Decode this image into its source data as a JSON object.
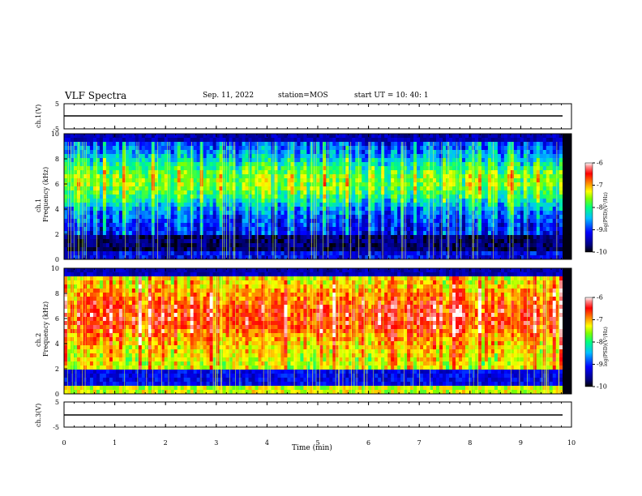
{
  "header": {
    "title": "VLF Spectra",
    "date": "Sep. 11, 2022",
    "station": "station=MOS",
    "start": "start  UT =  10: 40: 1"
  },
  "chart_data": [
    {
      "type": "line",
      "panel": "ch.1(V)",
      "ylabel": "ch.1(V)",
      "yticks": [
        "5",
        "-5"
      ],
      "ylim": [
        -5,
        5
      ],
      "x": [
        0,
        9.82
      ],
      "y": [
        0,
        0
      ]
    },
    {
      "type": "heatmap",
      "panel": "ch.1 spectrogram",
      "ylabel": "ch.1\nFrequency (kHz)",
      "ylabel_ch": "ch.1",
      "ylabel_freq": "Frequency (kHz)",
      "ylim": [
        0,
        10
      ],
      "yticks": [
        "0",
        "2",
        "4",
        "6",
        "8",
        "10"
      ],
      "xlim": [
        0,
        10
      ],
      "data_xmax": 9.82,
      "colorbar": {
        "label": "log(PSD)(V²/Hz)",
        "ticks": [
          "-6",
          "-7",
          "-8",
          "-9",
          "-10"
        ],
        "range": [
          -10,
          -6
        ]
      },
      "description_levels": {
        "background": -9.2,
        "band_hi": -8.1,
        "low_band": -10
      }
    },
    {
      "type": "heatmap",
      "panel": "ch.2 spectrogram",
      "ylabel": "ch.2\nFrequency (kHz)",
      "ylabel_ch": "ch.2",
      "ylabel_freq": "Frequency (kHz)",
      "ylim": [
        0,
        10
      ],
      "yticks": [
        "0",
        "2",
        "4",
        "6",
        "8",
        "10"
      ],
      "xlim": [
        0,
        10
      ],
      "data_xmax": 9.82,
      "colorbar": {
        "label": "log(PSD)(V²/Hz)",
        "ticks": [
          "-6",
          "-7",
          "-8",
          "-9",
          "-10"
        ],
        "range": [
          -10,
          -6
        ]
      },
      "description_levels": {
        "background": -7.4,
        "band_hi": -6.8,
        "low_band": -9.5
      }
    },
    {
      "type": "line",
      "panel": "ch.3(V)",
      "ylabel": "ch.3(V)",
      "yticks": [
        "5",
        "-5"
      ],
      "ylim": [
        -5,
        5
      ],
      "x": [
        0,
        9.82
      ],
      "y": [
        0,
        0
      ]
    }
  ],
  "xaxis": {
    "label": "Time  (min)",
    "ticks": [
      "0",
      "1",
      "2",
      "3",
      "4",
      "5",
      "6",
      "7",
      "8",
      "9",
      "10"
    ],
    "range": [
      0,
      10
    ]
  },
  "colors": {
    "colormap": [
      "#000080",
      "#0000ff",
      "#00c0ff",
      "#00ff80",
      "#80ff00",
      "#ffff00",
      "#ff8000",
      "#ff0000",
      "#ff6060",
      "#ffffff"
    ],
    "background": "#ffffff",
    "axis": "#000000"
  }
}
